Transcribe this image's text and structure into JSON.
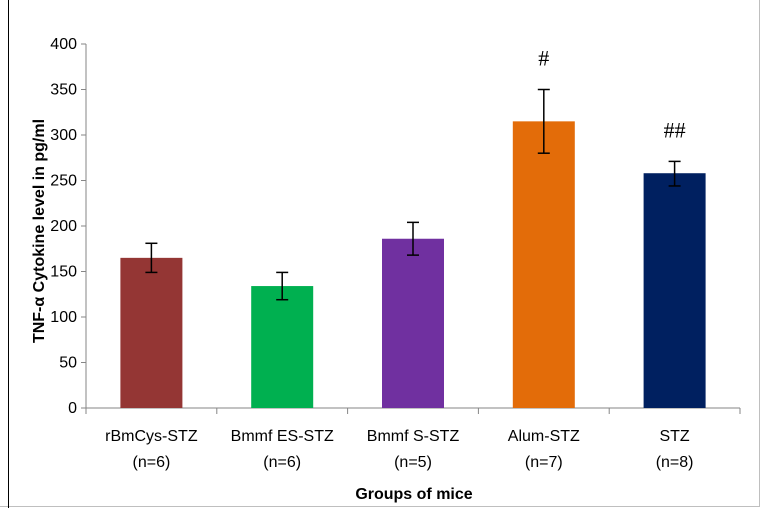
{
  "chart_data": {
    "type": "bar",
    "title": "",
    "xlabel": "Groups of mice",
    "ylabel": "TNF-α Cytokine level  in pg/ml",
    "ylim": [
      0,
      400
    ],
    "yticks": [
      "0",
      "50",
      "100",
      "150",
      "200",
      "250",
      "300",
      "350",
      "400"
    ],
    "grid": false,
    "legend": "none",
    "categories": [
      {
        "line1": "rBmCys-STZ",
        "line2": "(n=6)"
      },
      {
        "line1": "Bmmf ES-STZ",
        "line2": "(n=6)"
      },
      {
        "line1": "Bmmf S-STZ",
        "line2": "(n=5)"
      },
      {
        "line1": "Alum-STZ",
        "line2": "(n=7)"
      },
      {
        "line1": "STZ",
        "line2": "(n=8)"
      }
    ],
    "values": [
      165,
      134,
      186,
      315,
      258
    ],
    "error_low": [
      149,
      119,
      168,
      280,
      244
    ],
    "error_high": [
      181,
      149,
      204,
      350,
      271
    ],
    "colors": [
      "#943634",
      "#00b050",
      "#7030a0",
      "#e36c09",
      "#002060"
    ],
    "annotations": [
      "",
      "",
      "",
      "#",
      "##"
    ]
  }
}
